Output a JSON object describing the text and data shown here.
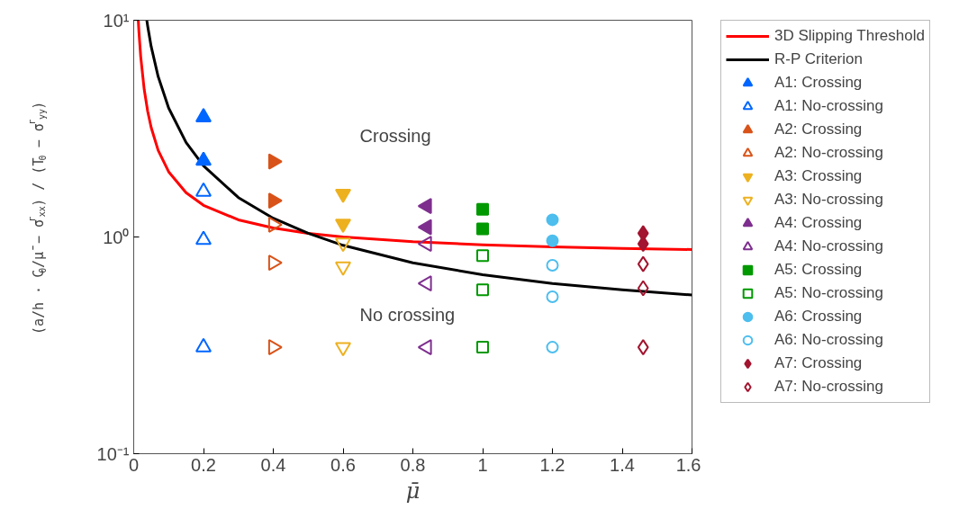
{
  "chart_data": {
    "type": "scatter",
    "xlabel": "μ̄",
    "ylabel": "(a/h · C$_{0}$/μ̄ − σ$^{r}$$_{xx}$) / (T$_{0}$ − σ$^{r}$$_{yy}$)",
    "log": "y",
    "xlim": [
      0,
      1.6
    ],
    "xticks": [
      0,
      0.2,
      0.4,
      0.6,
      0.8,
      1,
      1.2,
      1.4,
      1.6
    ],
    "ylim": [
      0.1,
      10
    ],
    "yticks": [
      {
        "value": 0.1,
        "label": "10⁻¹"
      },
      {
        "value": 1,
        "label": "10⁰"
      },
      {
        "value": 10,
        "label": "10¹"
      }
    ],
    "grid": false,
    "legend": "right",
    "annotations": [
      "Crossing",
      "No crossing"
    ],
    "series": [
      {
        "name": "3D Slipping Threshold",
        "type": "line",
        "color": "#ff0000",
        "x": [
          0.0131,
          0.015,
          0.02,
          0.03,
          0.04,
          0.05,
          0.07,
          0.1,
          0.15,
          0.2,
          0.3,
          0.4,
          0.5,
          0.6,
          0.8,
          1.0,
          1.2,
          1.4,
          1.6
        ],
        "values": [
          9.96,
          8.8,
          6.8,
          4.8,
          3.8,
          3.2,
          2.51,
          2.0,
          1.6,
          1.4,
          1.2,
          1.1,
          1.04,
          1.0,
          0.95,
          0.92,
          0.9,
          0.886,
          0.875
        ],
        "line_style": "solid"
      },
      {
        "name": "R-P Criterion",
        "type": "line",
        "color": "#000000",
        "x": [
          0.0375,
          0.04,
          0.05,
          0.07,
          0.1,
          0.15,
          0.2,
          0.3,
          0.4,
          0.5,
          0.6,
          0.8,
          1.0,
          1.2,
          1.4,
          1.6
        ],
        "values": [
          9.99,
          9.39,
          7.57,
          5.5,
          3.94,
          2.73,
          2.13,
          1.52,
          1.22,
          1.04,
          0.915,
          0.76,
          0.67,
          0.61,
          0.57,
          0.54
        ],
        "line_style": "solid"
      },
      {
        "name": "A1: Crossing",
        "color": "#0066ff",
        "marker": "triangle",
        "x": [
          0.2,
          0.2
        ],
        "values": [
          3.57,
          2.25
        ]
      },
      {
        "name": "A1: No-crossing",
        "color": "#0066ff",
        "marker": "triangle-open",
        "x": [
          0.2,
          0.2,
          0.2
        ],
        "values": [
          1.62,
          0.97,
          0.31
        ]
      },
      {
        "name": "A2: Crossing",
        "color": "#d95319",
        "marker": "triangle-right",
        "x": [
          0.4,
          0.4
        ],
        "values": [
          2.23,
          1.47
        ]
      },
      {
        "name": "A2: No-crossing",
        "color": "#d95319",
        "marker": "triangle-right-open",
        "x": [
          0.4,
          0.4,
          0.4
        ],
        "values": [
          1.14,
          0.76,
          0.31
        ]
      },
      {
        "name": "A3: Crossing",
        "color": "#edb120",
        "marker": "triangle-down",
        "x": [
          0.6,
          0.6
        ],
        "values": [
          1.58,
          1.15
        ]
      },
      {
        "name": "A3: No-crossing",
        "color": "#edb120",
        "marker": "triangle-down-open",
        "x": [
          0.6,
          0.6,
          0.6
        ],
        "values": [
          0.94,
          0.73,
          0.31
        ]
      },
      {
        "name": "A4: Crossing",
        "color": "#7e2f8e",
        "marker": "triangle-left",
        "x": [
          0.84,
          0.84
        ],
        "values": [
          1.39,
          1.11
        ]
      },
      {
        "name": "A4: No-crossing",
        "color": "#7e2f8e",
        "marker": "triangle-left-open",
        "x": [
          0.84,
          0.84,
          0.84
        ],
        "values": [
          0.93,
          0.61,
          0.31
        ]
      },
      {
        "name": "A5: Crossing",
        "color": "#009900",
        "marker": "square",
        "x": [
          1.0,
          1.0
        ],
        "values": [
          1.34,
          1.09
        ]
      },
      {
        "name": "A5: No-crossing",
        "color": "#009900",
        "marker": "square-open",
        "x": [
          1.0,
          1.0,
          1.0
        ],
        "values": [
          0.82,
          0.57,
          0.31
        ]
      },
      {
        "name": "A6: Crossing",
        "color": "#4dbeee",
        "marker": "circle",
        "x": [
          1.2,
          1.2
        ],
        "values": [
          1.2,
          0.96
        ]
      },
      {
        "name": "A6: No-crossing",
        "color": "#4dbeee",
        "marker": "circle-open",
        "x": [
          1.2,
          1.2,
          1.2
        ],
        "values": [
          0.74,
          0.53,
          0.31
        ]
      },
      {
        "name": "A7: Crossing",
        "color": "#a2142f",
        "marker": "diamond",
        "x": [
          1.46,
          1.46
        ],
        "values": [
          1.04,
          0.93
        ]
      },
      {
        "name": "A7: No-crossing",
        "color": "#a2142f",
        "marker": "diamond-open",
        "x": [
          1.46,
          1.46,
          1.46
        ],
        "values": [
          0.75,
          0.58,
          0.31
        ]
      }
    ]
  }
}
